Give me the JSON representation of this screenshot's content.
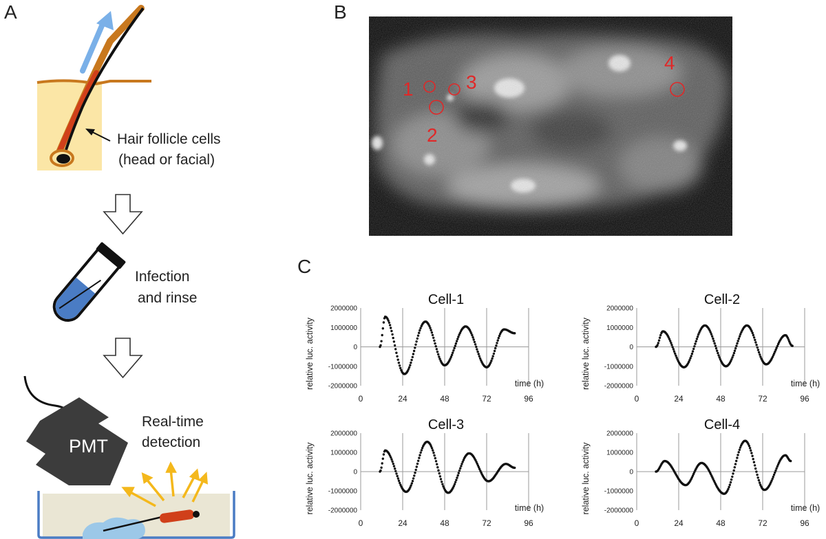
{
  "panels": {
    "a": "A",
    "b": "B",
    "c": "C"
  },
  "panel_a": {
    "step1_line1": "Hair follicle cells",
    "step1_line2": "(head or facial)",
    "step2_line1": "Infection",
    "step2_line2": "and rinse",
    "device": "PMT",
    "step3_line1": "Real-time",
    "step3_line2": "detection"
  },
  "panel_b": {
    "cell_labels": [
      "1",
      "2",
      "3",
      "4"
    ]
  },
  "colors": {
    "skin": "#fbe6a6",
    "skin_edge": "#c8781e",
    "hair": "#111111",
    "follicle": "#d0401a",
    "arrow_blue": "#7ab0e8",
    "liquid_blue": "#4a7cc4",
    "pmt": "#3c3c3c",
    "light_rays": "#f4b81c",
    "roi_red": "#e02828"
  },
  "chart_data": [
    {
      "type": "scatter",
      "title": "Cell-1",
      "ylabel": "relative luc. activity",
      "xlabel": "time (h)",
      "ylim": [
        -2000000,
        2000000
      ],
      "yticks": [
        "2000000",
        "1000000",
        "0",
        "-1000000",
        "-2000000"
      ],
      "xlim": [
        0,
        96
      ],
      "xticks": [
        "0",
        "24",
        "48",
        "72",
        "96"
      ],
      "x_range": [
        11,
        88
      ],
      "peaks": [
        [
          14,
          1550000
        ],
        [
          37,
          1300000
        ],
        [
          60,
          1050000
        ],
        [
          82,
          900000
        ]
      ],
      "troughs": [
        [
          25,
          -1400000
        ],
        [
          48,
          -950000
        ],
        [
          72,
          -1050000
        ]
      ],
      "end": [
        88,
        700000
      ]
    },
    {
      "type": "scatter",
      "title": "Cell-2",
      "ylabel": "relative luc. activity",
      "xlabel": "time (h)",
      "ylim": [
        -2000000,
        2000000
      ],
      "yticks": [
        "2000000",
        "1000000",
        "0",
        "-1000000",
        "-2000000"
      ],
      "xlim": [
        0,
        96
      ],
      "xticks": [
        "0",
        "24",
        "48",
        "72",
        "96"
      ],
      "x_range": [
        11,
        89
      ],
      "peaks": [
        [
          15,
          800000
        ],
        [
          39,
          1100000
        ],
        [
          63,
          1100000
        ],
        [
          85,
          600000
        ]
      ],
      "troughs": [
        [
          27,
          -1050000
        ],
        [
          51,
          -1000000
        ],
        [
          74,
          -900000
        ]
      ],
      "end": [
        89,
        50000
      ]
    },
    {
      "type": "scatter",
      "title": "Cell-3",
      "ylabel": "relative luc. activity",
      "xlabel": "time (h)",
      "ylim": [
        -2000000,
        2000000
      ],
      "yticks": [
        "2000000",
        "1000000",
        "0",
        "-1000000",
        "-2000000"
      ],
      "xlim": [
        0,
        96
      ],
      "xticks": [
        "0",
        "24",
        "48",
        "72",
        "96"
      ],
      "x_range": [
        11,
        88
      ],
      "peaks": [
        [
          14,
          1100000
        ],
        [
          38,
          1550000
        ],
        [
          62,
          950000
        ],
        [
          83,
          400000
        ]
      ],
      "troughs": [
        [
          26,
          -1050000
        ],
        [
          50,
          -1100000
        ],
        [
          73,
          -500000
        ]
      ],
      "end": [
        88,
        200000
      ]
    },
    {
      "type": "scatter",
      "title": "Cell-4",
      "ylabel": "relative luc. activity",
      "xlabel": "time (h)",
      "ylim": [
        -2000000,
        2000000
      ],
      "yticks": [
        "2000000",
        "1000000",
        "0",
        "-1000000",
        "-2000000"
      ],
      "xlim": [
        0,
        96
      ],
      "xticks": [
        "0",
        "24",
        "48",
        "72",
        "96"
      ],
      "x_range": [
        11,
        88
      ],
      "peaks": [
        [
          16,
          550000
        ],
        [
          37,
          450000
        ],
        [
          62,
          1600000
        ],
        [
          85,
          850000
        ]
      ],
      "troughs": [
        [
          28,
          -700000
        ],
        [
          50,
          -1150000
        ],
        [
          73,
          -950000
        ]
      ],
      "end": [
        88,
        550000
      ]
    }
  ]
}
